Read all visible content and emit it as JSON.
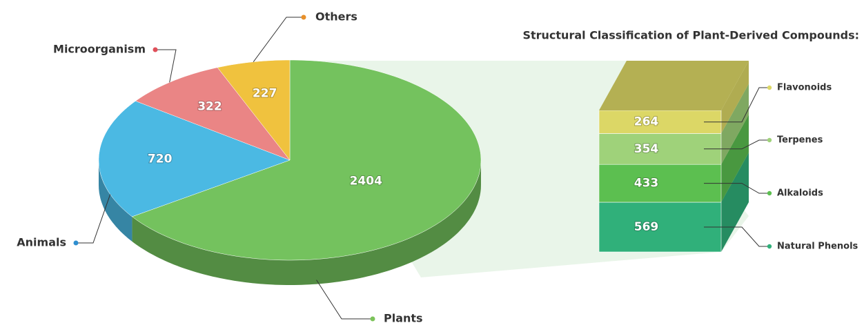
{
  "chart_data": [
    {
      "type": "pie",
      "categories": [
        "Plants",
        "Animals",
        "Microorganism",
        "Others"
      ],
      "values": [
        2404,
        720,
        322,
        227
      ],
      "colors": [
        "#74c25e",
        "#4bb9e3",
        "#ea8585",
        "#f0c23e"
      ],
      "label_colors": [
        "#7cc35a",
        "#2f8fd0",
        "#e0505a",
        "#e8902a"
      ]
    },
    {
      "type": "bar",
      "stacked": true,
      "title": "Structural Classification of Plant-Derived Compounds:",
      "series": [
        {
          "name": "Natural Phenols",
          "color": "#30b07a",
          "values": [
            569
          ]
        },
        {
          "name": "Alkaloids",
          "color": "#5cbf50",
          "values": [
            433
          ]
        },
        {
          "name": "Terpenes",
          "color": "#9fd27a",
          "values": [
            354
          ]
        },
        {
          "name": "Flavonoids",
          "color": "#dcd766",
          "values": [
            264
          ]
        }
      ]
    }
  ]
}
